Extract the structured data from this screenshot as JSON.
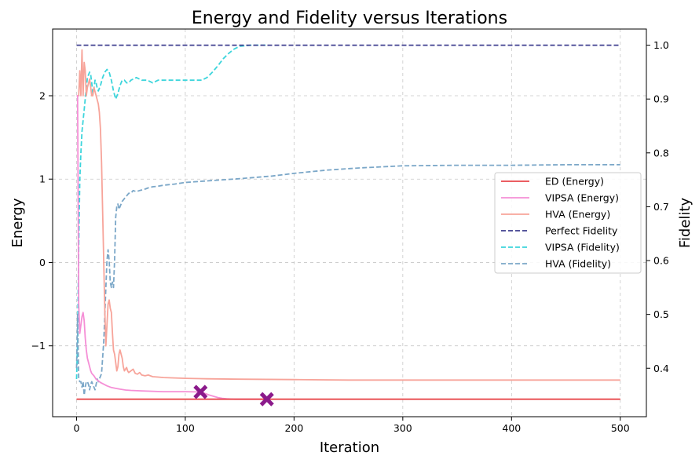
{
  "chart_data": {
    "type": "line",
    "title": "Energy and Fidelity versus Iterations",
    "xlabel": "Iteration",
    "ylabel_left": "Energy",
    "ylabel_right": "Fidelity",
    "xlim": [
      -22,
      524
    ],
    "ylim_left": [
      -1.85,
      2.8
    ],
    "ylim_right": [
      0.31,
      1.03
    ],
    "x_ticks": [
      0,
      100,
      200,
      300,
      400,
      500
    ],
    "x_tick_labels": [
      "0",
      "100",
      "200",
      "300",
      "400",
      "500"
    ],
    "y_left_ticks": [
      -1,
      0,
      1,
      2
    ],
    "y_left_tick_labels": [
      "−1",
      "0",
      "1",
      "2"
    ],
    "y_right_ticks": [
      0.4,
      0.5,
      0.6,
      0.7,
      0.8,
      0.9,
      1.0
    ],
    "y_right_tick_labels": [
      "0.4",
      "0.5",
      "0.6",
      "0.7",
      "0.8",
      "0.9",
      "1.0"
    ],
    "grid": true,
    "legend_placement": "center-right",
    "series": [
      {
        "name": "ED (Energy)",
        "axis": "left",
        "color": "#e8474b",
        "style": "solid",
        "x": [
          0,
          500
        ],
        "y": [
          -1.64,
          -1.64
        ]
      },
      {
        "name": "VIPSA (Energy)",
        "axis": "left",
        "color": "#f58fd6",
        "style": "solid",
        "x": [
          0,
          1,
          2,
          3,
          4,
          5,
          6,
          7,
          8,
          9,
          10,
          11,
          12,
          13,
          14,
          16,
          18,
          20,
          22,
          25,
          28,
          32,
          36,
          40,
          45,
          50,
          60,
          70,
          80,
          90,
          100,
          110,
          114,
          118,
          122,
          126,
          130,
          134,
          138,
          142,
          146,
          150,
          160,
          170,
          175
        ],
        "y": [
          2.0,
          2.0,
          -0.5,
          -0.85,
          -0.75,
          -0.65,
          -0.6,
          -0.7,
          -0.9,
          -1.05,
          -1.15,
          -1.2,
          -1.25,
          -1.3,
          -1.33,
          -1.36,
          -1.4,
          -1.42,
          -1.44,
          -1.46,
          -1.48,
          -1.5,
          -1.51,
          -1.52,
          -1.53,
          -1.535,
          -1.54,
          -1.545,
          -1.55,
          -1.55,
          -1.55,
          -1.553,
          -1.555,
          -1.57,
          -1.59,
          -1.605,
          -1.62,
          -1.63,
          -1.635,
          -1.638,
          -1.64,
          -1.64,
          -1.64,
          -1.64,
          -1.64
        ]
      },
      {
        "name": "HVA (Energy)",
        "axis": "left",
        "color": "#f7a49a",
        "style": "solid",
        "x": [
          0,
          1,
          2,
          3,
          4,
          5,
          6,
          7,
          8,
          9,
          10,
          11,
          12,
          13,
          14,
          15,
          16,
          17,
          18,
          19,
          20,
          21,
          22,
          23,
          24,
          25,
          26,
          27,
          28,
          29,
          30,
          31,
          32,
          33,
          34,
          35,
          36,
          37,
          38,
          39,
          40,
          41,
          42,
          43,
          44,
          45,
          46,
          47,
          48,
          50,
          52,
          54,
          56,
          58,
          60,
          63,
          66,
          70,
          75,
          80,
          90,
          100,
          120,
          150,
          200,
          250,
          300,
          400,
          500
        ],
        "y": [
          2.0,
          2.0,
          2.0,
          2.3,
          2.0,
          2.55,
          2.0,
          2.4,
          2.3,
          2.0,
          2.1,
          2.15,
          2.2,
          2.1,
          2.0,
          2.0,
          2.1,
          2.05,
          2.0,
          1.95,
          1.9,
          1.8,
          1.6,
          1.2,
          0.6,
          0.0,
          -0.6,
          -1.0,
          -0.75,
          -0.5,
          -0.45,
          -0.55,
          -0.6,
          -0.85,
          -1.05,
          -1.1,
          -1.2,
          -1.3,
          -1.25,
          -1.1,
          -1.05,
          -1.1,
          -1.15,
          -1.25,
          -1.3,
          -1.28,
          -1.26,
          -1.3,
          -1.32,
          -1.3,
          -1.28,
          -1.33,
          -1.34,
          -1.32,
          -1.35,
          -1.36,
          -1.35,
          -1.37,
          -1.375,
          -1.38,
          -1.385,
          -1.39,
          -1.395,
          -1.4,
          -1.405,
          -1.41,
          -1.41,
          -1.41,
          -1.41
        ]
      },
      {
        "name": "Perfect Fidelity",
        "axis": "right",
        "color": "#3f3f8f",
        "style": "dashed",
        "x": [
          0,
          500
        ],
        "y": [
          1.0,
          1.0
        ]
      },
      {
        "name": "VIPSA (Fidelity)",
        "axis": "right",
        "color": "#3dd5dc",
        "style": "dashed",
        "x": [
          0,
          1,
          2,
          3,
          4,
          5,
          6,
          7,
          8,
          9,
          10,
          11,
          12,
          13,
          14,
          15,
          16,
          17,
          18,
          19,
          20,
          22,
          24,
          26,
          28,
          30,
          32,
          34,
          36,
          38,
          40,
          42,
          44,
          46,
          48,
          50,
          55,
          60,
          65,
          70,
          75,
          80,
          90,
          100,
          110,
          115,
          120,
          125,
          130,
          135,
          140,
          145,
          150,
          160,
          175
        ],
        "y": [
          0.38,
          0.45,
          0.62,
          0.75,
          0.8,
          0.84,
          0.86,
          0.88,
          0.9,
          0.92,
          0.94,
          0.945,
          0.95,
          0.945,
          0.93,
          0.91,
          0.92,
          0.935,
          0.93,
          0.92,
          0.915,
          0.925,
          0.94,
          0.95,
          0.955,
          0.95,
          0.935,
          0.915,
          0.9,
          0.91,
          0.925,
          0.935,
          0.935,
          0.93,
          0.93,
          0.935,
          0.94,
          0.935,
          0.935,
          0.93,
          0.935,
          0.935,
          0.935,
          0.935,
          0.935,
          0.935,
          0.94,
          0.95,
          0.962,
          0.975,
          0.985,
          0.993,
          0.998,
          1.0,
          1.0
        ]
      },
      {
        "name": "HVA (Fidelity)",
        "axis": "right",
        "color": "#7ba7c8",
        "style": "dashed",
        "x": [
          0,
          1,
          2,
          3,
          4,
          5,
          6,
          7,
          8,
          9,
          10,
          11,
          12,
          13,
          14,
          15,
          16,
          17,
          18,
          19,
          20,
          21,
          22,
          23,
          24,
          25,
          26,
          27,
          28,
          29,
          30,
          31,
          32,
          33,
          34,
          35,
          36,
          37,
          38,
          39,
          40,
          42,
          44,
          46,
          48,
          50,
          52,
          55,
          58,
          62,
          66,
          70,
          75,
          80,
          90,
          100,
          120,
          150,
          180,
          200,
          230,
          260,
          300,
          350,
          400,
          450,
          500
        ],
        "y": [
          0.4,
          0.5,
          0.38,
          0.375,
          0.375,
          0.365,
          0.375,
          0.35,
          0.365,
          0.375,
          0.375,
          0.37,
          0.36,
          0.37,
          0.375,
          0.37,
          0.365,
          0.36,
          0.37,
          0.38,
          0.375,
          0.38,
          0.385,
          0.39,
          0.42,
          0.45,
          0.5,
          0.55,
          0.6,
          0.62,
          0.6,
          0.56,
          0.55,
          0.56,
          0.55,
          0.6,
          0.68,
          0.7,
          0.705,
          0.695,
          0.7,
          0.71,
          0.715,
          0.72,
          0.725,
          0.725,
          0.73,
          0.728,
          0.73,
          0.732,
          0.735,
          0.737,
          0.738,
          0.74,
          0.742,
          0.745,
          0.748,
          0.752,
          0.757,
          0.762,
          0.768,
          0.772,
          0.776,
          0.777,
          0.777,
          0.778,
          0.778
        ]
      }
    ],
    "markers": [
      {
        "axis": "left",
        "x": 114,
        "y": -1.553,
        "color": "#8b1a8b",
        "shape": "X"
      },
      {
        "axis": "left",
        "x": 175,
        "y": -1.64,
        "color": "#8b1a8b",
        "shape": "X"
      }
    ]
  }
}
